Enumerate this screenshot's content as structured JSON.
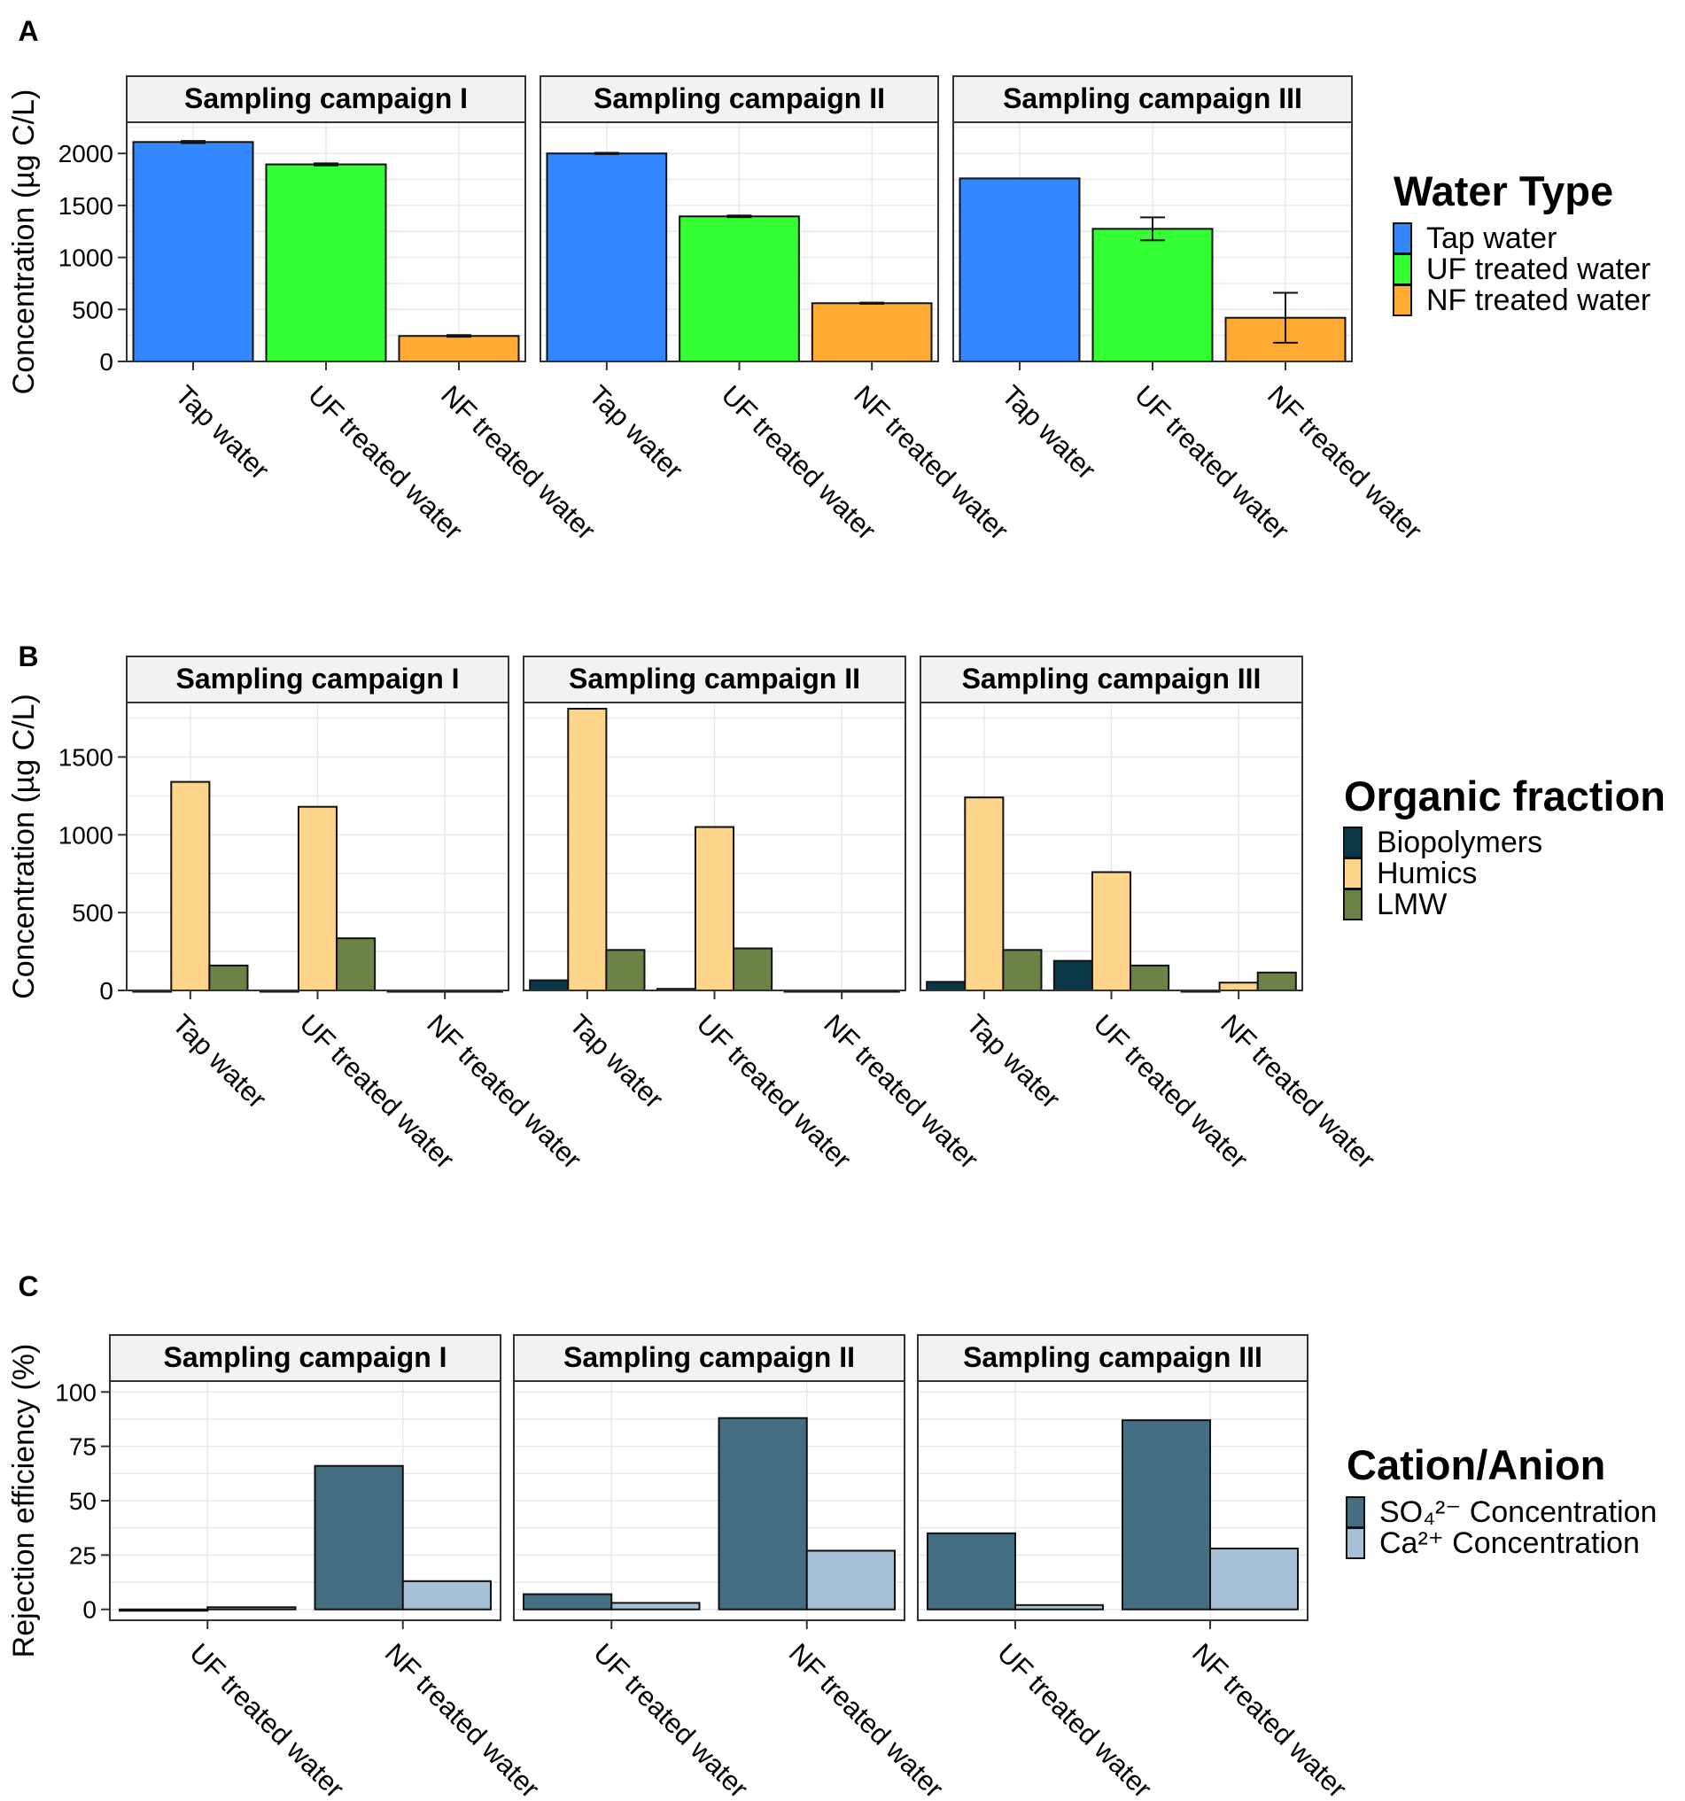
{
  "chart_data": [
    {
      "type": "bar",
      "panel_label": "A",
      "ylabel": "Concentration (µg C/L)",
      "ylim": [
        0,
        2300
      ],
      "yticks": [
        0,
        500,
        1000,
        1500,
        2000
      ],
      "facets": [
        "Sampling campaign I",
        "Sampling campaign II",
        "Sampling campaign III"
      ],
      "categories": [
        "Tap water",
        "UF treated water",
        "NF treated water"
      ],
      "legend_title": "Water Type",
      "series": [
        {
          "name": "Tap water",
          "color": "#3388FF",
          "values": [
            2110,
            2000,
            1760
          ],
          "errors": [
            10,
            6,
            0
          ]
        },
        {
          "name": "UF treated water",
          "color": "#33FF33",
          "values": [
            1895,
            1395,
            1275
          ],
          "errors": [
            10,
            8,
            110
          ]
        },
        {
          "name": "NF treated water",
          "color": "#FFAA33",
          "values": [
            245,
            560,
            420
          ],
          "errors": [
            8,
            5,
            240
          ]
        }
      ]
    },
    {
      "type": "bar",
      "panel_label": "B",
      "ylabel": "Concentration (µg C/L)",
      "ylim": [
        0,
        1850
      ],
      "yticks": [
        0,
        500,
        1000,
        1500
      ],
      "facets": [
        "Sampling campaign I",
        "Sampling campaign II",
        "Sampling campaign III"
      ],
      "categories": [
        "Tap water",
        "UF treated water",
        "NF treated water"
      ],
      "legend_title": "Organic fraction",
      "series": [
        {
          "name": "Biopolymers",
          "color": "#0B3848",
          "values": [
            [
              0,
              0,
              0
            ],
            [
              65,
              10,
              0
            ],
            [
              55,
              190,
              0
            ]
          ]
        },
        {
          "name": "Humics",
          "color": "#FDD58A",
          "values": [
            [
              1340,
              1180,
              0
            ],
            [
              1810,
              1050,
              0
            ],
            [
              1240,
              760,
              50
            ]
          ]
        },
        {
          "name": "LMW",
          "color": "#6B8446",
          "values": [
            [
              160,
              335,
              0
            ],
            [
              260,
              270,
              0
            ],
            [
              260,
              160,
              115
            ]
          ]
        }
      ]
    },
    {
      "type": "bar",
      "panel_label": "C",
      "ylabel": "Rejection efficiency (%)",
      "ylim": [
        -5,
        105
      ],
      "yticks": [
        0,
        25,
        50,
        75,
        100
      ],
      "facets": [
        "Sampling campaign I",
        "Sampling campaign II",
        "Sampling campaign III"
      ],
      "categories": [
        "UF treated water",
        "NF treated water"
      ],
      "legend_title": "Cation/Anion",
      "series": [
        {
          "name": "SO₄²⁻ Concentration",
          "color": "#466E83",
          "values": [
            [
              0,
              66
            ],
            [
              7,
              88
            ],
            [
              35,
              87
            ]
          ]
        },
        {
          "name": "Ca²⁺ Concentration",
          "color": "#A7C0D5",
          "values": [
            [
              1,
              13
            ],
            [
              3,
              27
            ],
            [
              2,
              28
            ]
          ]
        }
      ]
    }
  ]
}
